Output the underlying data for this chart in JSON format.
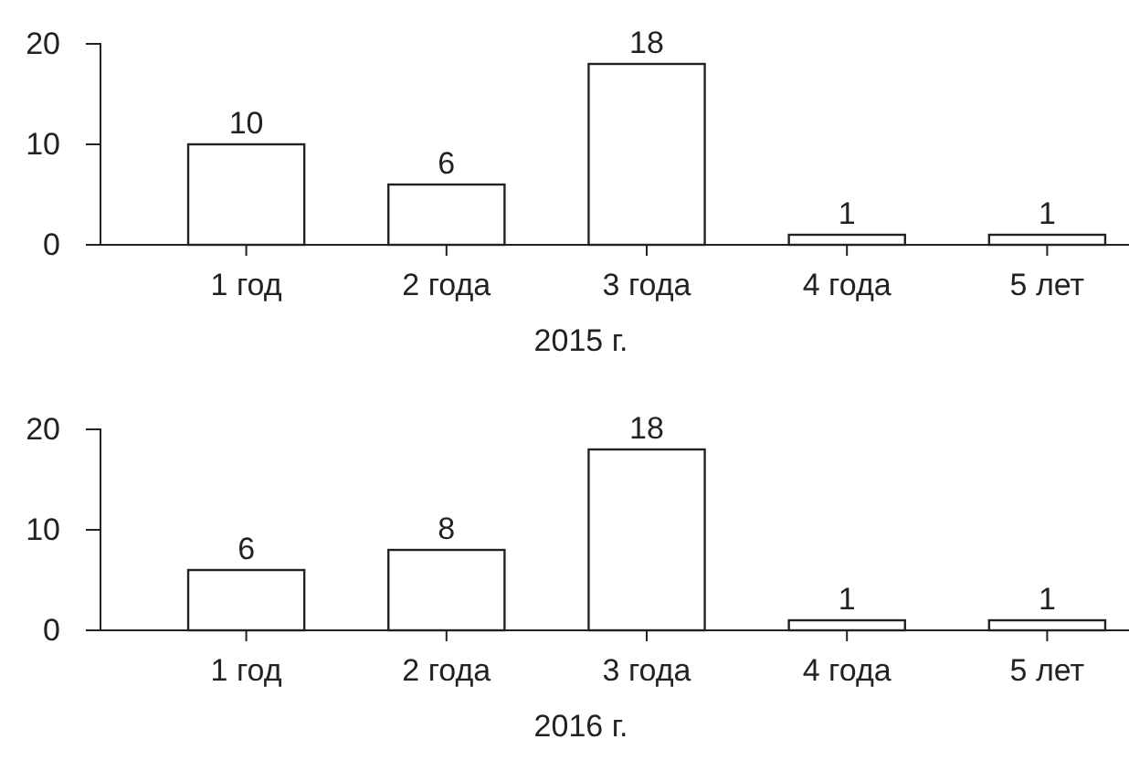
{
  "chart_data": [
    {
      "type": "bar",
      "categories": [
        "1 год",
        "2 года",
        "3 года",
        "4 года",
        "5 лет"
      ],
      "values": [
        10,
        6,
        18,
        1,
        1
      ],
      "color": "#ffffff",
      "ylim": [
        0,
        20
      ],
      "yticks": [
        0,
        10,
        20
      ],
      "xlabel": "2015 г.",
      "data_labels": true,
      "grid": false
    },
    {
      "type": "bar",
      "categories": [
        "1 год",
        "2 года",
        "3 года",
        "4 года",
        "5 лет"
      ],
      "values": [
        6,
        8,
        18,
        1,
        1
      ],
      "color": "#ffffff",
      "ylim": [
        0,
        20
      ],
      "yticks": [
        0,
        10,
        20
      ],
      "xlabel": "2016 г.",
      "data_labels": true,
      "grid": false
    }
  ]
}
